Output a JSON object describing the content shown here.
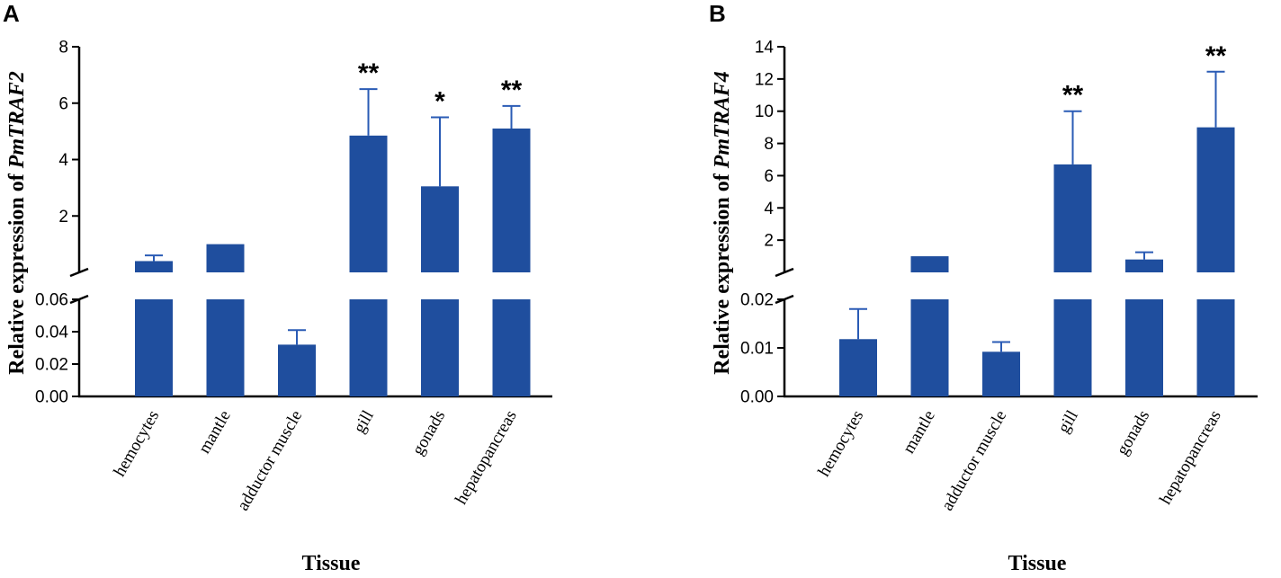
{
  "colors": {
    "bar": "#1F4E9E",
    "axis": "#000000",
    "error": "#2A5BB5"
  },
  "chart_data": [
    {
      "panel": "A",
      "type": "bar",
      "ylabel_prefix": "Relative expression of ",
      "ylabel_gene": "PmTRAF2",
      "xlabel": "Tissue",
      "categories": [
        "hemocytes",
        "mantle",
        "adductor muscle",
        "gill",
        "gonads",
        "hepatopancreas"
      ],
      "values": [
        0.4,
        1.0,
        0.032,
        4.85,
        3.05,
        5.1
      ],
      "errors": [
        0.2,
        0.0,
        0.009,
        1.65,
        2.45,
        0.8
      ],
      "significance": [
        "",
        "",
        "",
        "**",
        "*",
        "**"
      ],
      "axis_break": {
        "lower_range": [
          0,
          0.06
        ],
        "upper_range": [
          0,
          8
        ]
      },
      "lower_ticks": [
        "0.00",
        "0.02",
        "0.04",
        "0.06"
      ],
      "upper_ticks": [
        "2",
        "4",
        "6",
        "8"
      ]
    },
    {
      "panel": "B",
      "type": "bar",
      "ylabel_prefix": "Relative expression of ",
      "ylabel_gene": "PmTRAF4",
      "xlabel": "Tissue",
      "categories": [
        "hemocytes",
        "mantle",
        "adductor muscle",
        "gill",
        "gonads",
        "hepatopancreas"
      ],
      "values": [
        0.0118,
        1.0,
        0.0092,
        6.7,
        0.8,
        9.0
      ],
      "errors": [
        0.0062,
        0.0,
        0.002,
        3.3,
        0.45,
        3.45
      ],
      "significance": [
        "",
        "",
        "",
        "**",
        "",
        "**"
      ],
      "axis_break": {
        "lower_range": [
          0,
          0.02
        ],
        "upper_range": [
          0,
          14
        ]
      },
      "lower_ticks": [
        "0.00",
        "0.01",
        "0.02"
      ],
      "upper_ticks": [
        "2",
        "4",
        "6",
        "8",
        "10",
        "12",
        "14"
      ]
    }
  ]
}
